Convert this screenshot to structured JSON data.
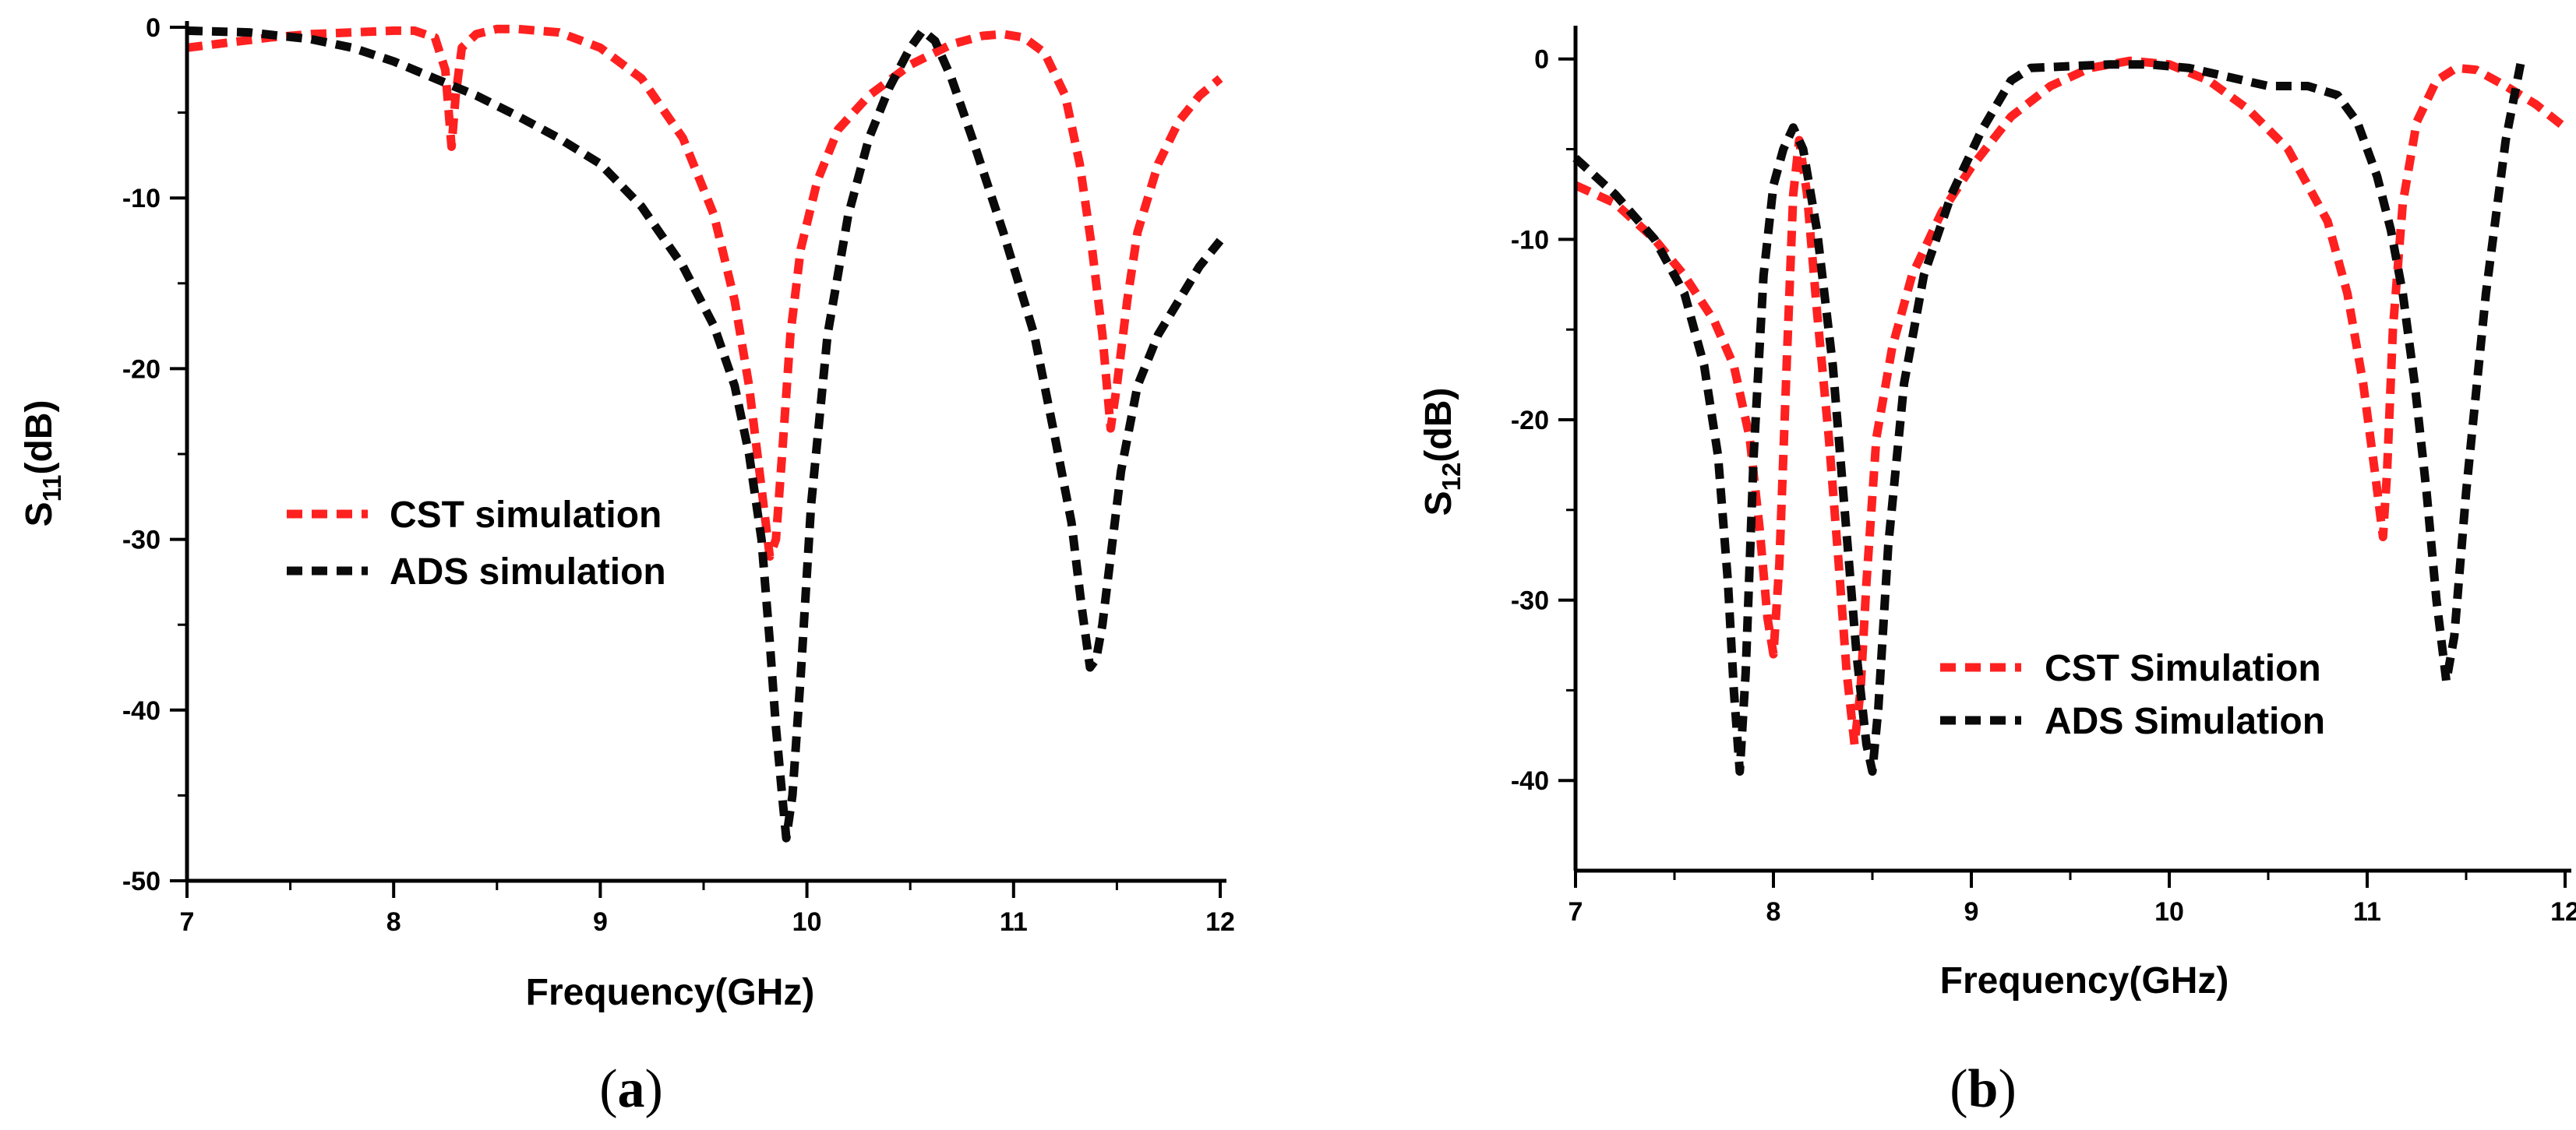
{
  "colors": {
    "cst": "#ff2020",
    "ads": "#0a0a0a",
    "axis": "#000000"
  },
  "chart_data": [
    {
      "panel": "a",
      "caption_open": "(",
      "caption_letter": "a",
      "caption_close": ")",
      "type": "line",
      "title": "",
      "xlabel": "Frequency(GHz)",
      "ylabel_main": "S",
      "ylabel_sub": "11",
      "ylabel_unit": "(dB)",
      "xlim": [
        7,
        12
      ],
      "ylim": [
        -50,
        0
      ],
      "xticks": [
        7,
        8,
        9,
        10,
        11,
        12
      ],
      "yticks": [
        0,
        -10,
        -20,
        -30,
        -40,
        -50
      ],
      "grid": false,
      "legend_placement": "center-left",
      "series": [
        {
          "name": "CST simulation",
          "color": "#ff2020",
          "line_style": "dashed",
          "x": [
            7.0,
            7.2,
            7.4,
            7.6,
            7.8,
            8.0,
            8.1,
            8.2,
            8.25,
            8.28,
            8.3,
            8.33,
            8.4,
            8.5,
            8.6,
            8.8,
            9.0,
            9.2,
            9.4,
            9.55,
            9.65,
            9.72,
            9.78,
            9.82,
            9.85,
            9.88,
            9.92,
            9.97,
            10.05,
            10.15,
            10.3,
            10.5,
            10.7,
            10.85,
            10.95,
            11.05,
            11.15,
            11.25,
            11.32,
            11.38,
            11.43,
            11.47,
            11.5,
            11.55,
            11.6,
            11.7,
            11.8,
            11.9,
            12.0
          ],
          "y": [
            -1.2,
            -0.9,
            -0.6,
            -0.4,
            -0.3,
            -0.2,
            -0.2,
            -0.6,
            -2.5,
            -7.0,
            -4.0,
            -1.2,
            -0.4,
            -0.1,
            -0.1,
            -0.3,
            -1.2,
            -3.0,
            -6.5,
            -11.0,
            -16.0,
            -21.0,
            -27.0,
            -31.0,
            -30.0,
            -25.0,
            -18.0,
            -13.0,
            -9.0,
            -6.0,
            -4.0,
            -2.2,
            -1.0,
            -0.5,
            -0.4,
            -0.6,
            -1.5,
            -4.0,
            -8.0,
            -13.0,
            -18.0,
            -23.5,
            -21.0,
            -16.0,
            -12.0,
            -8.0,
            -5.5,
            -4.0,
            -3.0
          ]
        },
        {
          "name": "ADS simulation",
          "color": "#0a0a0a",
          "line_style": "dashed",
          "x": [
            7.0,
            7.3,
            7.6,
            7.8,
            8.0,
            8.2,
            8.4,
            8.6,
            8.8,
            9.0,
            9.2,
            9.4,
            9.55,
            9.65,
            9.72,
            9.78,
            9.82,
            9.85,
            9.88,
            9.9,
            9.93,
            9.97,
            10.02,
            10.1,
            10.2,
            10.3,
            10.4,
            10.5,
            10.56,
            10.62,
            10.7,
            10.8,
            10.95,
            11.1,
            11.2,
            11.28,
            11.33,
            11.37,
            11.4,
            11.43,
            11.47,
            11.52,
            11.6,
            11.7,
            11.8,
            11.9,
            12.0
          ],
          "y": [
            -0.2,
            -0.3,
            -0.7,
            -1.2,
            -2.0,
            -3.0,
            -4.0,
            -5.2,
            -6.5,
            -8.0,
            -10.5,
            -14.0,
            -17.5,
            -21.0,
            -25.0,
            -30.0,
            -36.0,
            -41.0,
            -45.0,
            -47.5,
            -45.0,
            -38.0,
            -28.0,
            -18.0,
            -11.0,
            -6.5,
            -3.5,
            -1.2,
            -0.2,
            -0.8,
            -3.0,
            -6.5,
            -12.0,
            -18.0,
            -24.0,
            -29.0,
            -34.0,
            -37.5,
            -37.0,
            -35.0,
            -31.0,
            -26.0,
            -21.0,
            -18.0,
            -16.0,
            -14.0,
            -12.5
          ]
        }
      ]
    },
    {
      "panel": "b",
      "caption_open": "(",
      "caption_letter": "b",
      "caption_close": ")",
      "type": "line",
      "title": "",
      "xlabel": "Frequency(GHz)",
      "ylabel_main": "S",
      "ylabel_sub": "12",
      "ylabel_unit": "(dB)",
      "xlim": [
        7,
        12
      ],
      "ylim": [
        -45,
        1.5
      ],
      "xticks": [
        7,
        8,
        9,
        10,
        11,
        12
      ],
      "yticks": [
        0,
        -10,
        -20,
        -30,
        -40
      ],
      "grid": false,
      "legend_placement": "lower-center",
      "series": [
        {
          "name": "CST Simulation",
          "color": "#ff2020",
          "line_style": "dashed",
          "x": [
            7.0,
            7.2,
            7.4,
            7.55,
            7.7,
            7.8,
            7.88,
            7.93,
            7.97,
            8.0,
            8.03,
            8.07,
            8.1,
            8.13,
            8.17,
            8.22,
            8.28,
            8.33,
            8.37,
            8.41,
            8.44,
            8.47,
            8.52,
            8.6,
            8.7,
            8.85,
            9.0,
            9.2,
            9.4,
            9.6,
            9.8,
            10.0,
            10.2,
            10.4,
            10.6,
            10.8,
            10.9,
            10.98,
            11.04,
            11.08,
            11.1,
            11.13,
            11.18,
            11.25,
            11.35,
            11.45,
            11.55,
            11.7,
            11.85,
            12.0
          ],
          "y": [
            -7.0,
            -8.0,
            -10.0,
            -12.0,
            -14.5,
            -17.0,
            -21.0,
            -26.0,
            -31.0,
            -33.0,
            -28.0,
            -16.0,
            -7.5,
            -4.5,
            -7.5,
            -14.0,
            -21.0,
            -28.0,
            -34.0,
            -38.0,
            -35.0,
            -29.0,
            -21.0,
            -16.0,
            -12.0,
            -8.5,
            -6.0,
            -3.2,
            -1.5,
            -0.5,
            -0.1,
            -0.3,
            -1.2,
            -2.8,
            -5.0,
            -9.0,
            -13.0,
            -18.0,
            -23.0,
            -26.5,
            -23.0,
            -15.0,
            -8.0,
            -3.5,
            -1.2,
            -0.5,
            -0.6,
            -1.5,
            -2.5,
            -3.8
          ]
        },
        {
          "name": "ADS Simulation",
          "color": "#0a0a0a",
          "line_style": "dashed",
          "x": [
            7.0,
            7.2,
            7.4,
            7.55,
            7.65,
            7.72,
            7.77,
            7.8,
            7.83,
            7.86,
            7.9,
            7.95,
            8.0,
            8.05,
            8.1,
            8.15,
            8.22,
            8.3,
            8.36,
            8.42,
            8.47,
            8.5,
            8.53,
            8.58,
            8.66,
            8.76,
            8.9,
            9.05,
            9.2,
            9.3,
            9.5,
            9.7,
            9.9,
            10.1,
            10.3,
            10.5,
            10.7,
            10.85,
            10.95,
            11.05,
            11.12,
            11.18,
            11.24,
            11.3,
            11.35,
            11.4,
            11.44,
            11.5,
            11.6,
            11.7,
            11.78
          ],
          "y": [
            -5.5,
            -7.5,
            -10.0,
            -13.0,
            -17.0,
            -22.0,
            -29.0,
            -35.0,
            -39.5,
            -34.0,
            -22.0,
            -12.0,
            -7.0,
            -5.0,
            -3.8,
            -5.0,
            -9.5,
            -17.0,
            -25.0,
            -33.0,
            -38.0,
            -39.5,
            -36.0,
            -27.0,
            -18.0,
            -12.0,
            -7.5,
            -4.0,
            -1.2,
            -0.5,
            -0.4,
            -0.3,
            -0.3,
            -0.5,
            -1.0,
            -1.5,
            -1.5,
            -2.0,
            -3.5,
            -6.5,
            -9.5,
            -13.0,
            -18.0,
            -24.0,
            -30.0,
            -34.5,
            -32.0,
            -24.0,
            -13.0,
            -4.5,
            0.0
          ]
        }
      ]
    }
  ]
}
